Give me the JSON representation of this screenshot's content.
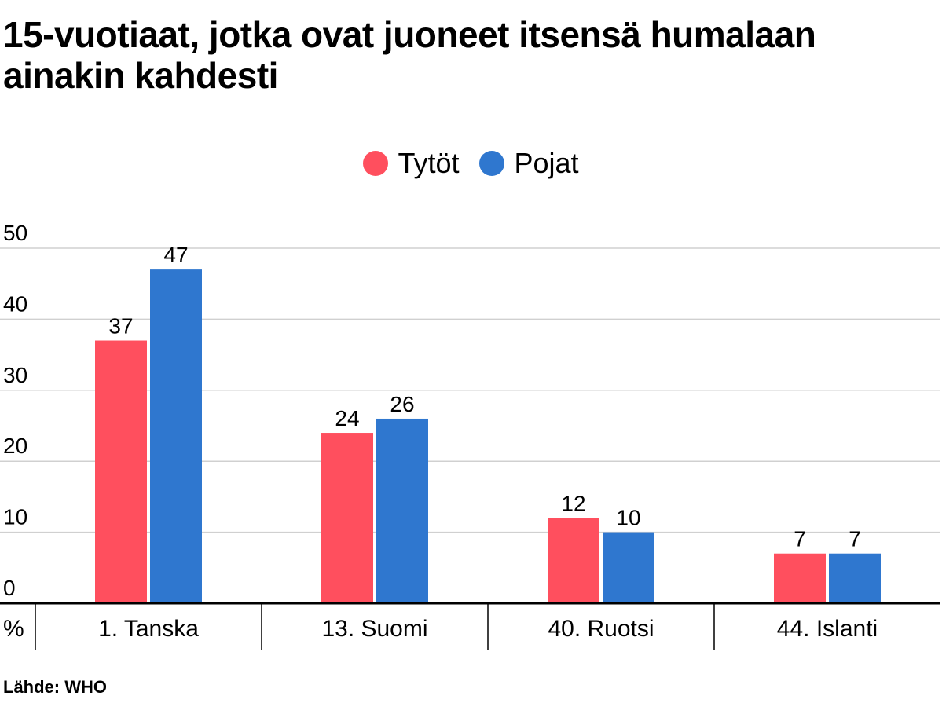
{
  "title": "15-vuotiaat, jotka ovat juoneet itsensä humalaan ainakin kahdesti",
  "source": "Lähde: WHO",
  "unit_label": "%",
  "colors": {
    "Tytöt": "#ff4f5e",
    "Pojat": "#2f77cf",
    "grid": "#d0d0d0",
    "axis": "#000000"
  },
  "chart_data": {
    "type": "bar",
    "categories": [
      "1. Tanska",
      "13. Suomi",
      "40. Ruotsi",
      "44. Islanti"
    ],
    "series": [
      {
        "name": "Tytöt",
        "values": [
          37,
          24,
          12,
          7
        ]
      },
      {
        "name": "Pojat",
        "values": [
          47,
          26,
          10,
          7
        ]
      }
    ],
    "ylim": [
      0,
      50
    ],
    "yticks": [
      0,
      10,
      20,
      30,
      40,
      50
    ],
    "ylabel": "%",
    "grid": true,
    "legend": "top-center",
    "data_labels": true
  }
}
